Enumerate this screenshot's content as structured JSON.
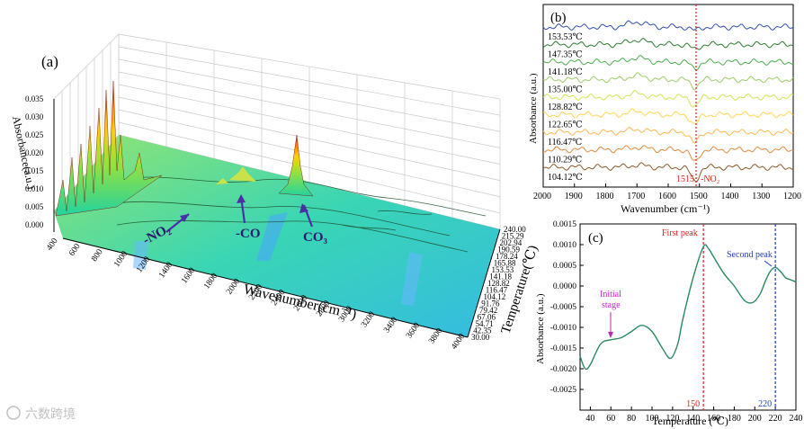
{
  "watermark": "六数跨境",
  "panel_a": {
    "label": "(a)",
    "xlabel": "Wavenumber(cm⁻¹)",
    "ylabel": "Temperature(℃)",
    "zlabel": "Absorbance(a.u.)",
    "x_ticks": [
      "400",
      "600",
      "800",
      "1000",
      "1200",
      "1400",
      "1600",
      "1800",
      "2000",
      "2200",
      "2400",
      "2600",
      "2800",
      "3000",
      "3200",
      "3400",
      "3600",
      "3800",
      "4000"
    ],
    "y_ticks": [
      "30.00",
      "42.35",
      "54.71",
      "67.06",
      "79.42",
      "91.76",
      "104.12",
      "116.47",
      "128.82",
      "141.18",
      "153.53",
      "165.88",
      "178.24",
      "190.59",
      "202.94",
      "215.29",
      "240.00"
    ],
    "z_ticks": [
      "0.000",
      "0.005",
      "0.010",
      "0.015",
      "0.020",
      "0.025",
      "0.030",
      "0.035"
    ],
    "annotations": [
      "-NO₂",
      "-CO",
      "CO₃"
    ]
  },
  "panel_b": {
    "label": "(b)",
    "xlabel": "Wavenumber (cm⁻¹)",
    "ylabel": "Absorbance (a.u.)",
    "marker_text": "1515",
    "marker_label": "-NO₂",
    "x_ticks": [
      "2000",
      "1900",
      "1800",
      "1700",
      "1600",
      "1500",
      "1400",
      "1300",
      "1200"
    ]
  },
  "panel_c": {
    "label": "(c)",
    "xlabel": "Temperature (℃)",
    "ylabel": "Absorbance (a.u.)",
    "x_ticks": [
      "40",
      "60",
      "80",
      "100",
      "120",
      "140",
      "160",
      "180",
      "200",
      "220",
      "240"
    ],
    "y_ticks": [
      "0.0015",
      "0.0010",
      "0.0005",
      "0.0000",
      "-0.0005",
      "-0.0010",
      "-0.0015",
      "-0.0020",
      "-0.0025"
    ],
    "annot_first": "First peak",
    "annot_second": "Second peak",
    "annot_initial_1": "Initial",
    "annot_initial_2": "stage",
    "vline1_label": "150",
    "vline2_label": "220"
  },
  "chart_data": [
    {
      "type": "area",
      "panel": "a",
      "note_source": "3D waterfall of in-situ DRIFTS spectra",
      "xlabel": "Wavenumber(cm⁻¹)",
      "ylabel": "Temperature(℃)",
      "zlabel": "Absorbance(a.u.)",
      "xlim": [
        400,
        4000
      ],
      "ylim": [
        30,
        240
      ],
      "zlim": [
        0,
        0.035
      ],
      "annotations": [
        {
          "text": "-NO₂",
          "x": 1550
        },
        {
          "text": "-CO",
          "x": 2150
        },
        {
          "text": "CO₃",
          "x": 2700
        }
      ]
    },
    {
      "type": "line",
      "panel": "b",
      "xlabel": "Wavenumber (cm⁻¹)",
      "ylabel": "Absorbance (a.u.)",
      "xlim": [
        2000,
        1200
      ],
      "marker_x": 1515,
      "series": [
        {
          "name": "153.53℃",
          "color": "#2f4fb0"
        },
        {
          "name": "147.35℃",
          "color": "#2e7d32"
        },
        {
          "name": "141.18℃",
          "color": "#4caf50"
        },
        {
          "name": "135.00℃",
          "color": "#9ccc65"
        },
        {
          "name": "128.82℃",
          "color": "#d4e157"
        },
        {
          "name": "122.65℃",
          "color": "#ffd54f"
        },
        {
          "name": "116.47℃",
          "color": "#ffb74d"
        },
        {
          "name": "110.29℃",
          "color": "#e08a3c"
        },
        {
          "name": "104.12℃",
          "color": "#8d5a2b"
        }
      ]
    },
    {
      "type": "line",
      "panel": "c",
      "xlabel": "Temperature (℃)",
      "ylabel": "Absorbance (a.u.)",
      "xlim": [
        30,
        240
      ],
      "ylim": [
        -0.003,
        0.0015
      ],
      "series": [
        {
          "x": [
            30,
            35,
            40,
            50,
            60,
            70,
            80,
            90,
            100,
            110,
            118,
            125,
            130,
            140,
            150,
            155,
            160,
            170,
            180,
            190,
            198,
            205,
            210,
            215,
            220,
            225,
            230,
            235,
            240
          ],
          "y": [
            -0.0017,
            -0.002,
            -0.0019,
            -0.0014,
            -0.0013,
            -0.00125,
            -0.0011,
            -0.00095,
            -0.0011,
            -0.0015,
            -0.00175,
            -0.0014,
            -0.0008,
            0.0002,
            0.00095,
            0.0009,
            0.0007,
            0.0003,
            0.0,
            -0.00035,
            -0.0004,
            -0.0002,
            0.0001,
            0.00035,
            0.00045,
            0.00035,
            0.0002,
            0.00015,
            0.0001
          ]
        }
      ],
      "vlines": [
        {
          "x": 150,
          "label": "150",
          "color": "#d62728"
        },
        {
          "x": 220,
          "label": "220",
          "color": "#1f3fbf"
        }
      ],
      "annotations": [
        {
          "text": "First peak",
          "x": 150
        },
        {
          "text": "Second peak",
          "x": 220
        },
        {
          "text": "Initial stage",
          "x": 60
        }
      ]
    }
  ]
}
